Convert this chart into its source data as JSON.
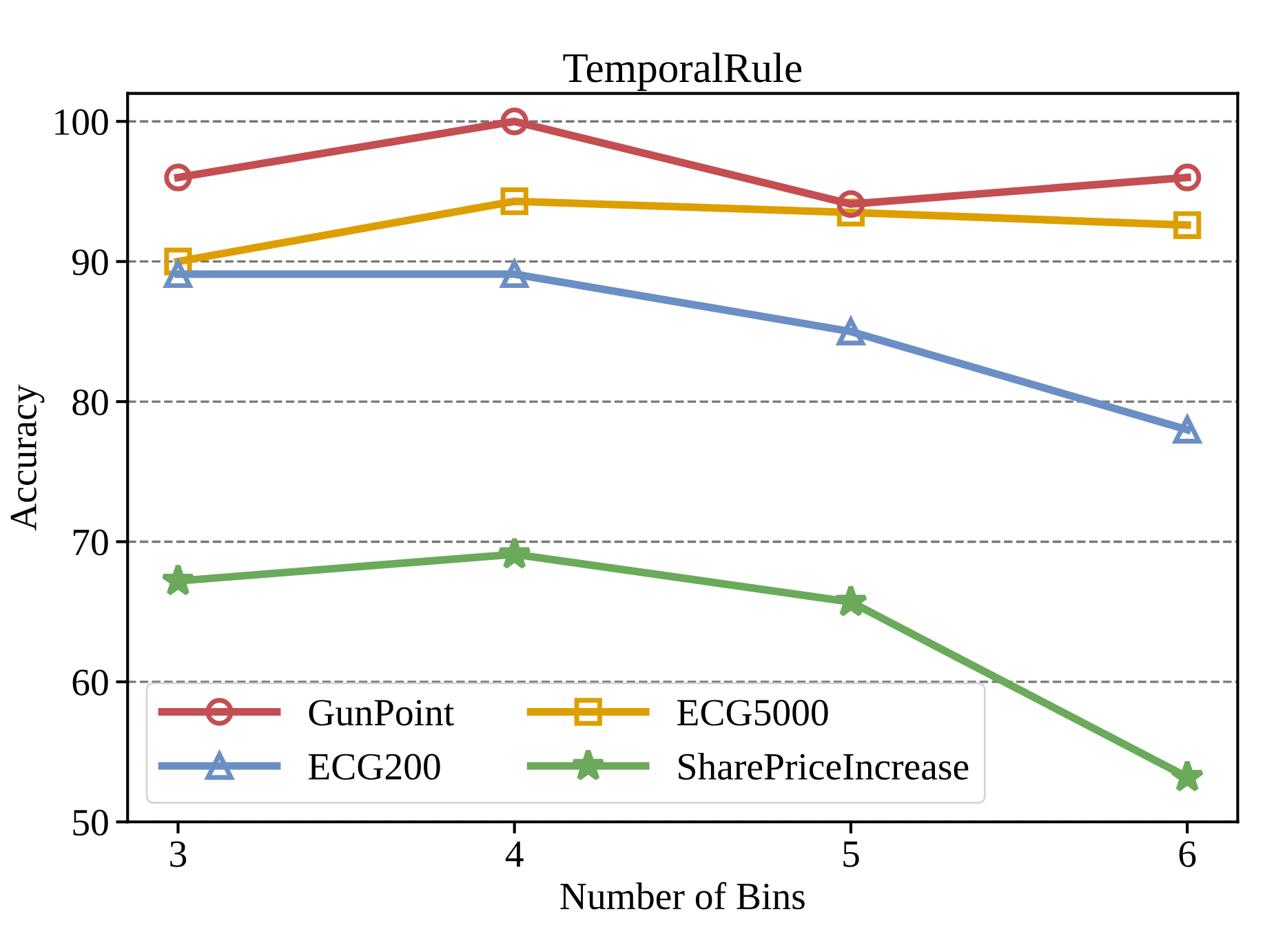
{
  "chart_data": {
    "type": "line",
    "title": "TemporalRule",
    "xlabel": "Number of Bins",
    "ylabel": "Accuracy",
    "x": [
      3,
      4,
      5,
      6
    ],
    "series": [
      {
        "name": "GunPoint",
        "color": "#c44e52",
        "marker": "circle",
        "values": [
          96.0,
          100.0,
          94.1,
          96.0
        ]
      },
      {
        "name": "ECG200",
        "color": "#6b8fc4",
        "marker": "triangle",
        "values": [
          89.1,
          89.1,
          85.0,
          78.0
        ]
      },
      {
        "name": "ECG5000",
        "color": "#dd9f00",
        "marker": "square",
        "values": [
          90.0,
          94.3,
          93.5,
          92.6
        ]
      },
      {
        "name": "SharePriceIncrease",
        "color": "#6aaa5a",
        "marker": "star",
        "values": [
          67.2,
          69.1,
          65.7,
          53.2
        ]
      }
    ],
    "xlim": [
      2.85,
      6.15
    ],
    "xticks": [
      3,
      4,
      5,
      6
    ],
    "ylim": [
      50,
      102
    ],
    "yticks": [
      50,
      60,
      70,
      80,
      90,
      100
    ],
    "grid": "y",
    "legend": "bottom left",
    "line_style": "solid"
  }
}
